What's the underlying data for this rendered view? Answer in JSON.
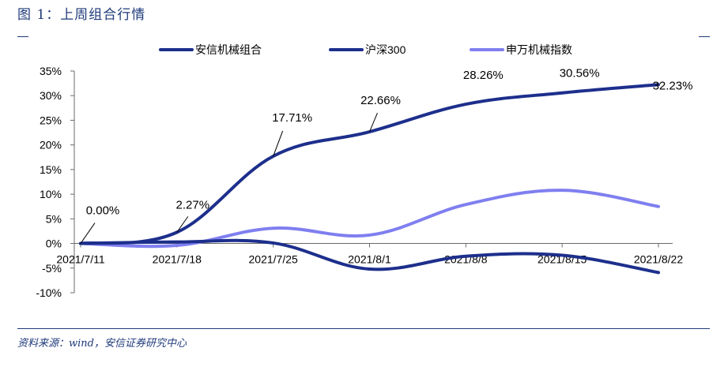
{
  "figure": {
    "title": "图 1：上周组合行情",
    "source": "资料来源：wind，安信证券研究中心"
  },
  "colors": {
    "portfolio": "#1d2f8c",
    "hs300": "#1d2f8c",
    "machinery": "#7f7ff0",
    "axis": "#6b6b6b",
    "text": "#000000",
    "rule": "#1f3a7a"
  },
  "chart_data": {
    "type": "line",
    "categories": [
      "2021/7/11",
      "2021/7/18",
      "2021/7/25",
      "2021/8/1",
      "2021/8/8",
      "2021/8/15",
      "2021/8/22"
    ],
    "y_ticks": [
      "35%",
      "30%",
      "25%",
      "20%",
      "15%",
      "10%",
      "5%",
      "0%",
      "-5%",
      "-10%"
    ],
    "ylim": [
      -10,
      35
    ],
    "y_unit": "%",
    "grid": false,
    "legend_position": "top",
    "series": [
      {
        "name": "安信机械组合",
        "key": "portfolio",
        "values": [
          0.0,
          2.27,
          17.71,
          22.66,
          28.26,
          30.56,
          32.23
        ],
        "labels": [
          "0.00%",
          "2.27%",
          "17.71%",
          "22.66%",
          "28.26%",
          "30.56%",
          "32.23%"
        ]
      },
      {
        "name": "沪深300",
        "key": "hs300",
        "values": [
          0.0,
          0.3,
          0.1,
          -5.2,
          -2.6,
          -2.4,
          -5.9
        ]
      },
      {
        "name": "申万机械指数",
        "key": "machinery",
        "values": [
          0.0,
          -0.4,
          3.1,
          1.7,
          7.9,
          10.8,
          7.5
        ]
      }
    ]
  }
}
